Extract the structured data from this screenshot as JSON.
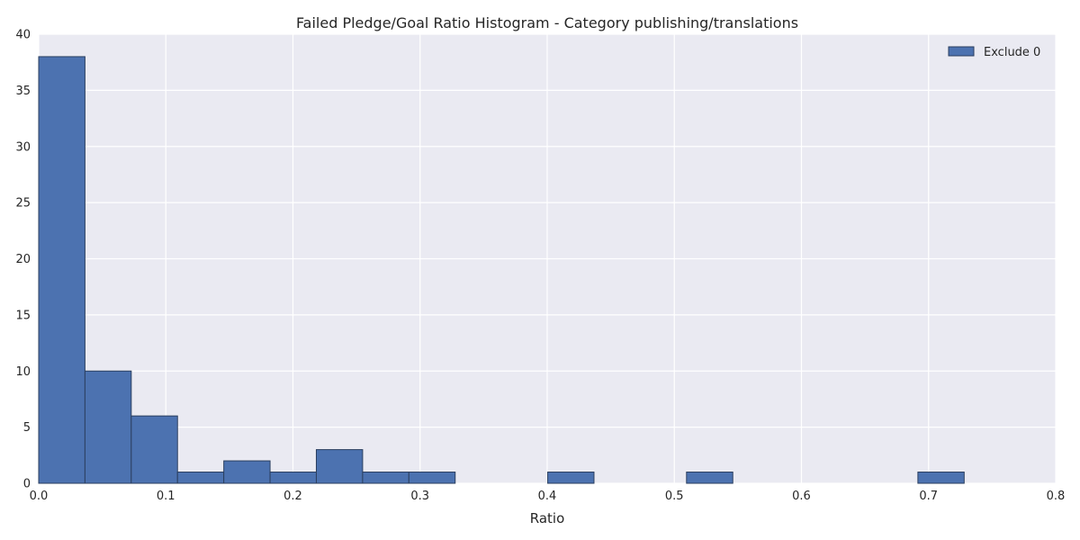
{
  "chart_data": {
    "type": "bar",
    "title": "Failed Pledge/Goal Ratio Histogram - Category publishing/translations",
    "xlabel": "Ratio",
    "ylabel": "",
    "xlim": [
      0.0,
      0.8
    ],
    "ylim": [
      0,
      40
    ],
    "xticks": [
      "0.0",
      "0.1",
      "0.2",
      "0.3",
      "0.4",
      "0.5",
      "0.6",
      "0.7",
      "0.8"
    ],
    "yticks": [
      "0",
      "5",
      "10",
      "15",
      "20",
      "25",
      "30",
      "35",
      "40"
    ],
    "bin_width": 0.0364,
    "bins": [
      {
        "start": 0.0,
        "value": 38
      },
      {
        "start": 0.0364,
        "value": 10
      },
      {
        "start": 0.0728,
        "value": 6
      },
      {
        "start": 0.1092,
        "value": 1
      },
      {
        "start": 0.1456,
        "value": 2
      },
      {
        "start": 0.182,
        "value": 1
      },
      {
        "start": 0.2184,
        "value": 3
      },
      {
        "start": 0.2548,
        "value": 1
      },
      {
        "start": 0.2912,
        "value": 1
      },
      {
        "start": 0.4004,
        "value": 1
      },
      {
        "start": 0.5096,
        "value": 1
      },
      {
        "start": 0.6916,
        "value": 1
      }
    ],
    "series": [
      {
        "name": "Exclude 0"
      }
    ],
    "colors": {
      "bar": "#4c72b0",
      "bar_edge": "#2b3f5f",
      "background": "#eaeaf2",
      "grid": "#ffffff"
    },
    "grid": true,
    "legend": "top-right"
  }
}
